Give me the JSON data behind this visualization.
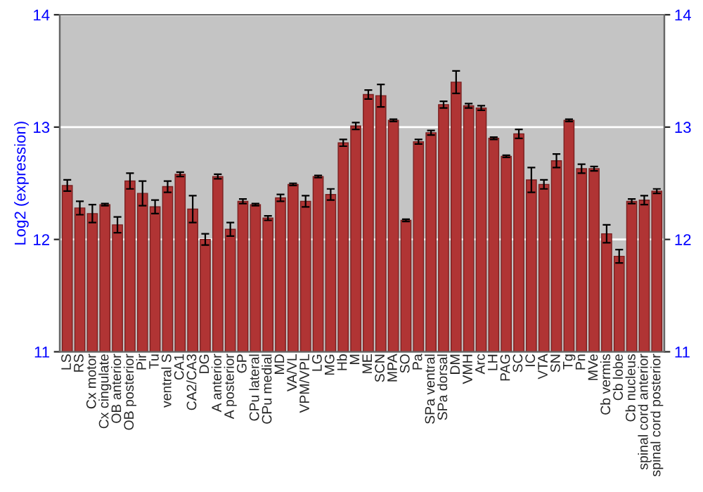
{
  "chart_data": {
    "type": "bar",
    "ylabel": "Log2 (expression)",
    "categories": [
      "LS",
      "RS",
      "Cx motor",
      "Cx cingulate",
      "OB anterior",
      "OB posterior",
      "Pir",
      "Tu",
      "ventral S",
      "CA1",
      "CA2/CA3",
      "DG",
      "A anterior",
      "A posterior",
      "GP",
      "CPu lateral",
      "CPu medial",
      "MD",
      "VA/VL",
      "VPM/VPL",
      "LG",
      "MG",
      "Hb",
      "M",
      "ME",
      "SCN",
      "MPA",
      "SO",
      "Pa",
      "SPa ventral",
      "SPa dorsal",
      "DM",
      "VMH",
      "Arc",
      "LH",
      "PAG",
      "SC",
      "IC",
      "VTA",
      "SN",
      "Tg",
      "Pn",
      "MVe",
      "Cb vermis",
      "Cb lobe",
      "Cb nucleus",
      "spinal cord anterior",
      "spinal cord posterior"
    ],
    "series": [
      {
        "color": "#b03434",
        "values": [
          12.48,
          12.28,
          12.23,
          12.31,
          12.13,
          12.52,
          12.41,
          12.29,
          12.47,
          12.58,
          12.27,
          12.0,
          12.56,
          12.09,
          12.34,
          12.31,
          12.19,
          12.37,
          12.49,
          12.34,
          12.56,
          12.4,
          12.86,
          13.01,
          13.29,
          13.28,
          13.06,
          12.17,
          12.87,
          12.95,
          13.2,
          13.4,
          13.19,
          13.17,
          12.9,
          12.74,
          12.94,
          12.53,
          12.49,
          12.7,
          13.06,
          12.63,
          12.63,
          12.05,
          11.85,
          12.34,
          12.35,
          12.43
        ],
        "errors": [
          0.05,
          0.06,
          0.08,
          0.01,
          0.07,
          0.07,
          0.11,
          0.06,
          0.05,
          0.02,
          0.12,
          0.05,
          0.02,
          0.06,
          0.02,
          0.01,
          0.02,
          0.03,
          0.01,
          0.05,
          0.01,
          0.05,
          0.03,
          0.03,
          0.04,
          0.1,
          0.01,
          0.01,
          0.02,
          0.02,
          0.03,
          0.1,
          0.02,
          0.02,
          0.01,
          0.01,
          0.04,
          0.11,
          0.04,
          0.06,
          0.01,
          0.04,
          0.02,
          0.08,
          0.06,
          0.02,
          0.04,
          0.02
        ]
      }
    ],
    "ylim": [
      11,
      14
    ],
    "yticks": [
      11,
      12,
      13,
      14
    ],
    "y2lim": [
      11,
      14
    ],
    "y2ticks": [
      11,
      12,
      13,
      14
    ],
    "grid": "y",
    "legend": false
  }
}
